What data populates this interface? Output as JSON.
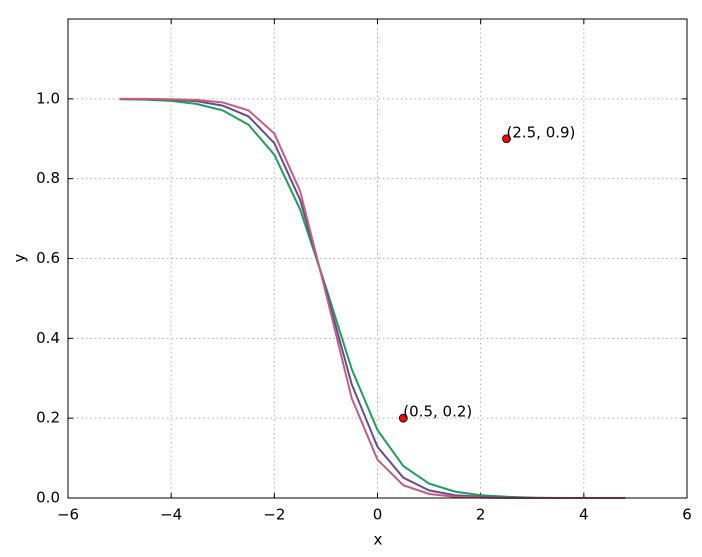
{
  "chart_data": {
    "type": "line",
    "x_label": "x",
    "y_label": "y",
    "x": [
      -5,
      -4.5,
      -4,
      -3.5,
      -3,
      -2.5,
      -2,
      -1.5,
      -1,
      -0.5,
      0,
      0.5,
      1,
      1.5,
      2,
      2.5,
      3,
      3.5,
      4,
      4.5,
      4.8
    ],
    "series": [
      {
        "color": "#1f9e5a",
        "values": [
          0.999,
          0.998,
          0.995,
          0.987,
          0.971,
          0.935,
          0.86,
          0.723,
          0.528,
          0.323,
          0.17,
          0.08,
          0.036,
          0.016,
          0.007,
          0.003,
          0.001,
          0.0,
          0.0,
          0.0,
          0.0
        ]
      },
      {
        "color": "#6a4a8c",
        "values": [
          1.0,
          0.999,
          0.998,
          0.994,
          0.983,
          0.956,
          0.889,
          0.747,
          0.521,
          0.285,
          0.128,
          0.051,
          0.019,
          0.007,
          0.003,
          0.001,
          0.0,
          0.0,
          0.0,
          0.0,
          0.0
        ]
      },
      {
        "color": "#c0607e",
        "values": [
          1.0,
          1.0,
          0.999,
          0.997,
          0.991,
          0.971,
          0.913,
          0.769,
          0.513,
          0.25,
          0.096,
          0.032,
          0.01,
          0.003,
          0.001,
          0.0,
          0.0,
          0.0,
          0.0,
          0.0,
          0.0
        ]
      }
    ],
    "points": [
      {
        "x": 0.5,
        "y": 0.2,
        "label": "(0.5, 0.2)",
        "color": "#ff0000"
      },
      {
        "x": 2.5,
        "y": 0.9,
        "label": "(2.5, 0.9)",
        "color": "#ff0000"
      }
    ],
    "xlim": [
      -6,
      6
    ],
    "xticks": [
      {
        "value": -6,
        "label": "−6"
      },
      {
        "value": -4,
        "label": "−4"
      },
      {
        "value": -2,
        "label": "−2"
      },
      0,
      2,
      4,
      6
    ],
    "ylim": [
      0,
      1.2
    ],
    "yticks": [
      {
        "value": 0,
        "label": "0.0"
      },
      0.2,
      0.4,
      0.6,
      0.8,
      {
        "value": 1,
        "label": "1.0"
      }
    ],
    "grid": true
  }
}
